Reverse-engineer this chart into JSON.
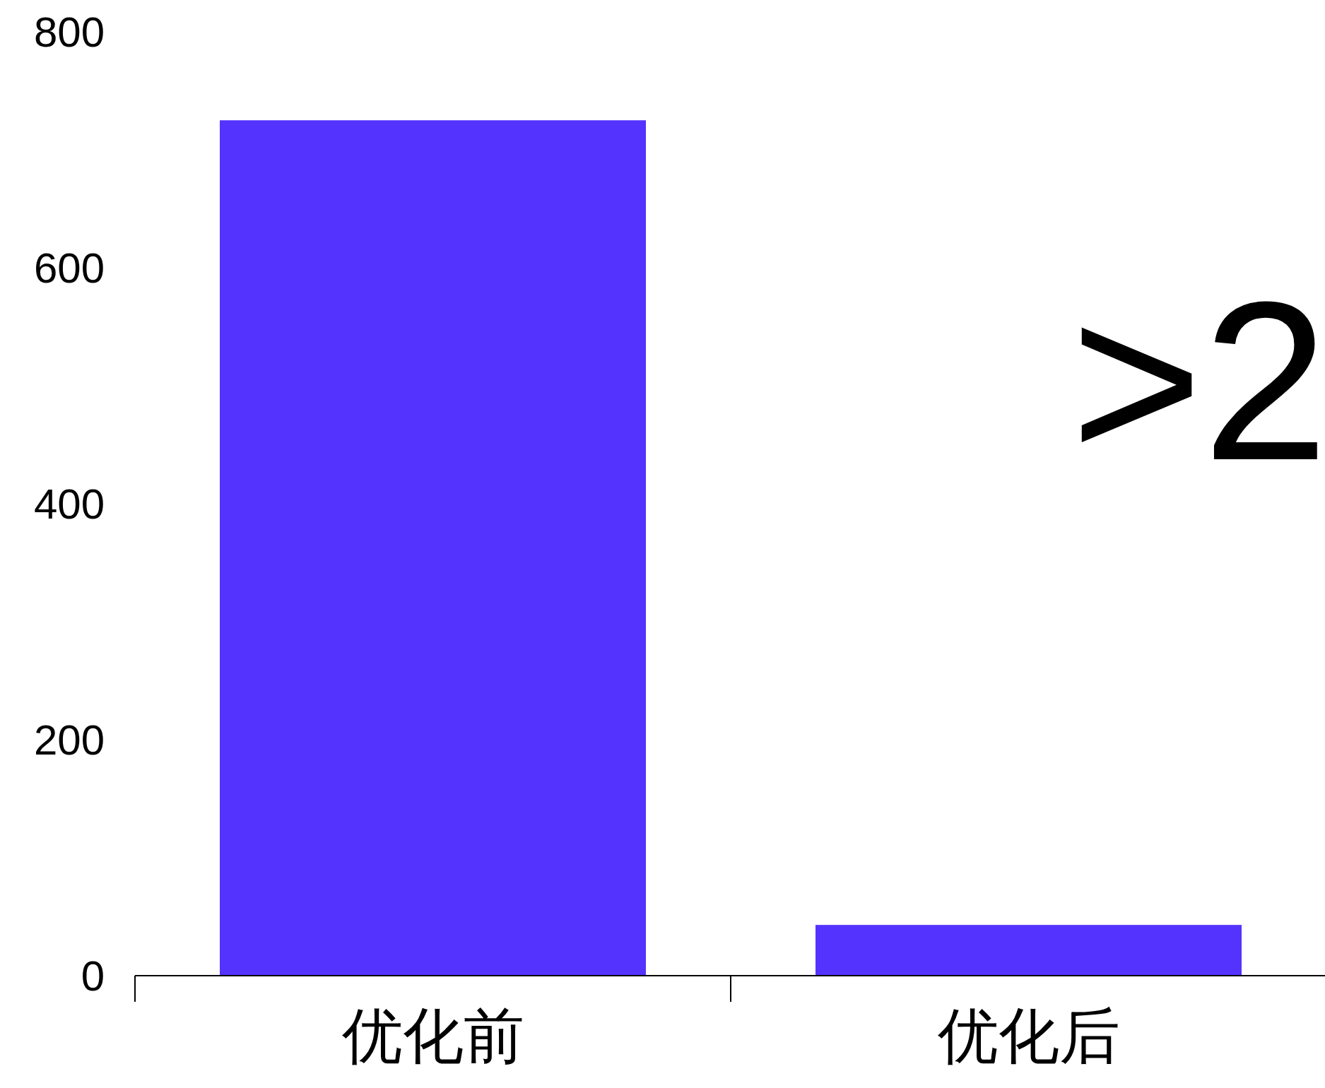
{
  "chart_data": {
    "type": "bar",
    "categories": [
      "优化前",
      "优化后"
    ],
    "values": [
      725,
      43
    ],
    "color": "#5433ff",
    "ylim": [
      0,
      800
    ],
    "yticks": [
      0,
      200,
      400,
      600,
      800
    ],
    "annotations": [
      ">2"
    ]
  }
}
